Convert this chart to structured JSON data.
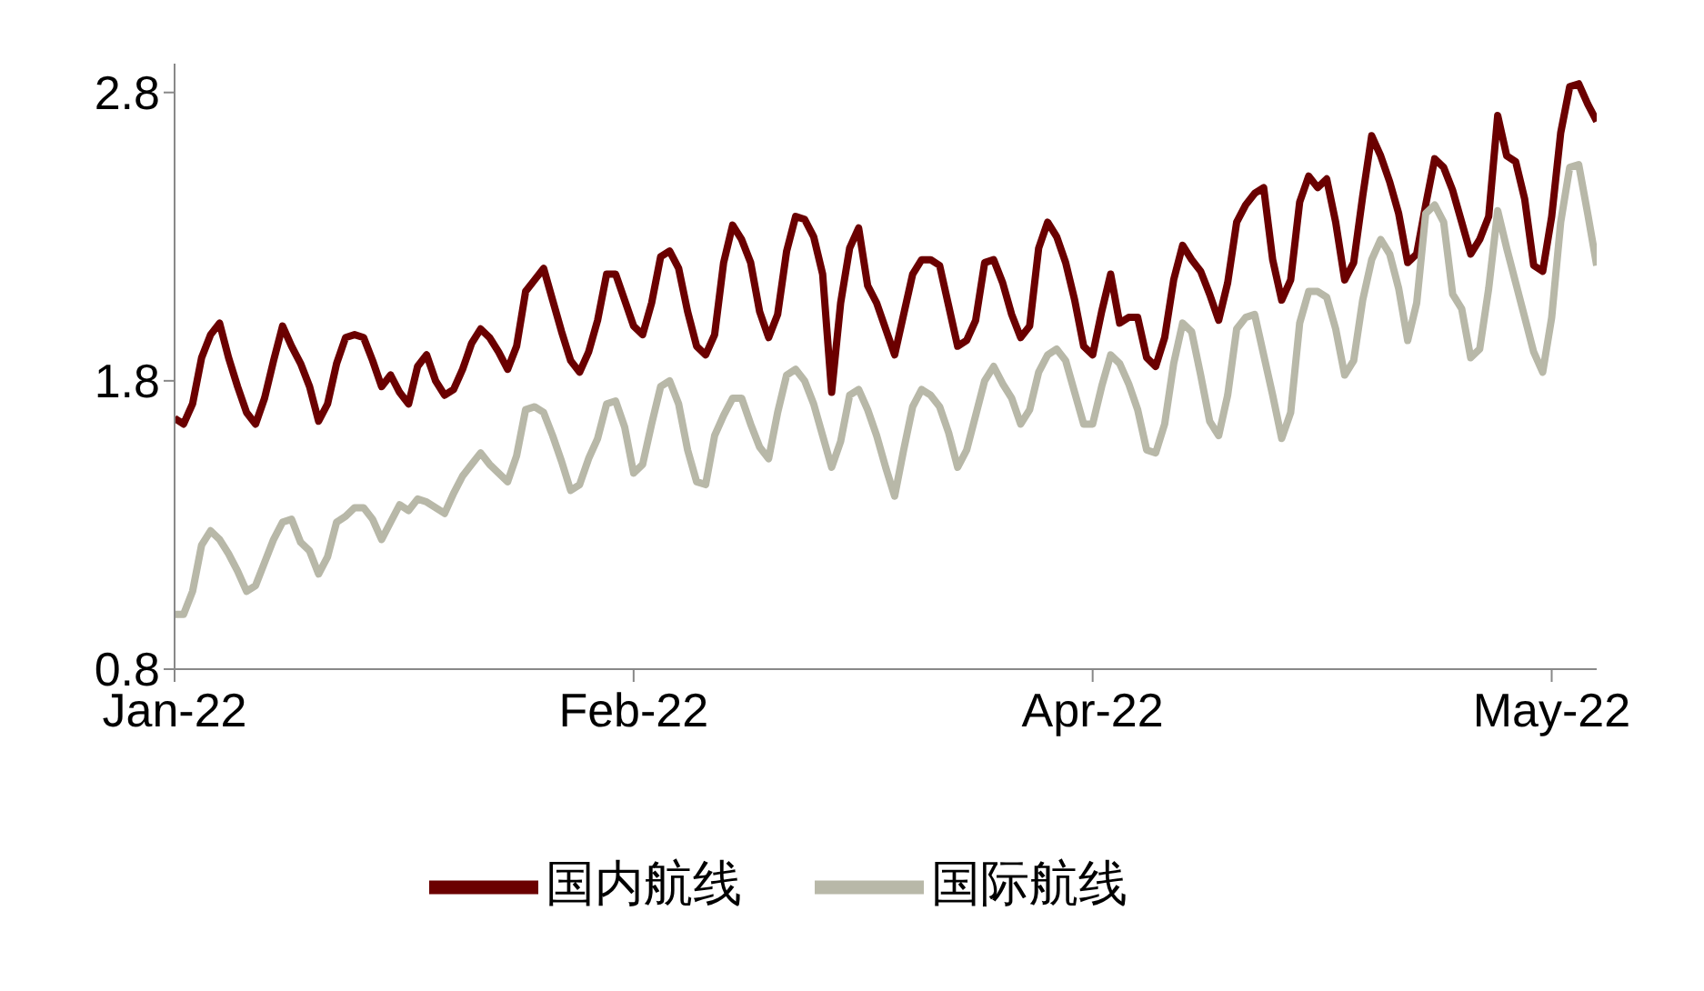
{
  "chart_data": {
    "type": "line",
    "categories": [
      "Jan-22",
      null,
      null,
      null,
      null,
      null,
      null,
      null,
      null,
      null,
      null,
      null,
      null,
      null,
      null,
      null,
      null,
      null,
      null,
      null,
      null,
      null,
      null,
      null,
      null,
      null,
      null,
      null,
      null,
      null,
      null,
      null,
      null,
      null,
      null,
      null,
      null,
      null,
      null,
      null,
      null,
      null,
      null,
      null,
      null,
      null,
      null,
      null,
      null,
      null,
      null,
      "Feb-22",
      null,
      null,
      null,
      null,
      null,
      null,
      null,
      null,
      null,
      null,
      null,
      null,
      null,
      null,
      null,
      null,
      null,
      null,
      null,
      null,
      null,
      null,
      null,
      null,
      null,
      null,
      null,
      null,
      null,
      null,
      null,
      null,
      null,
      null,
      null,
      null,
      null,
      null,
      null,
      null,
      null,
      null,
      null,
      null,
      null,
      null,
      null,
      null,
      null,
      null,
      "Apr-22",
      null,
      null,
      null,
      null,
      null,
      null,
      null,
      null,
      null,
      null,
      null,
      null,
      null,
      null,
      null,
      null,
      null,
      null,
      null,
      null,
      null,
      null,
      null,
      null,
      null,
      null,
      null,
      null,
      null,
      null,
      null,
      null,
      null,
      null,
      null,
      null,
      null,
      null,
      null,
      null,
      null,
      null,
      null,
      null,
      null,
      null,
      null,
      null,
      null,
      null,
      "May-22",
      null,
      null,
      null,
      null,
      null
    ],
    "ylim": [
      0.8,
      2.9
    ],
    "yticks": [
      0.8,
      1.8,
      2.8
    ],
    "grid": false,
    "legend": "bottom",
    "marker": "none",
    "line_style": "solid",
    "series": [
      {
        "name": "国内航线",
        "color": "#6b0000",
        "values": [
          1.67,
          1.65,
          1.72,
          1.88,
          1.96,
          2.0,
          1.88,
          1.78,
          1.69,
          1.65,
          1.74,
          1.87,
          1.99,
          1.92,
          1.86,
          1.78,
          1.66,
          1.72,
          1.86,
          1.95,
          1.96,
          1.95,
          1.87,
          1.78,
          1.82,
          1.76,
          1.72,
          1.85,
          1.89,
          1.8,
          1.75,
          1.77,
          1.84,
          1.93,
          1.98,
          1.95,
          1.9,
          1.84,
          1.92,
          2.11,
          2.15,
          2.19,
          2.08,
          1.97,
          1.87,
          1.83,
          1.9,
          2.01,
          2.17,
          2.17,
          2.08,
          1.99,
          1.96,
          2.07,
          2.23,
          2.25,
          2.19,
          2.04,
          1.92,
          1.89,
          1.96,
          2.21,
          2.34,
          2.29,
          2.21,
          2.04,
          1.95,
          2.03,
          2.25,
          2.37,
          2.36,
          2.3,
          2.17,
          1.76,
          2.07,
          2.26,
          2.33,
          2.13,
          2.07,
          1.98,
          1.89,
          2.03,
          2.17,
          2.22,
          2.22,
          2.2,
          2.06,
          1.92,
          1.94,
          2.01,
          2.21,
          2.22,
          2.14,
          2.03,
          1.95,
          1.99,
          2.26,
          2.35,
          2.3,
          2.21,
          2.08,
          1.92,
          1.89,
          2.04,
          2.17,
          2.0,
          2.02,
          2.02,
          1.88,
          1.85,
          1.95,
          2.15,
          2.27,
          2.22,
          2.18,
          2.1,
          2.01,
          2.14,
          2.35,
          2.41,
          2.45,
          2.47,
          2.22,
          2.08,
          2.15,
          2.42,
          2.51,
          2.47,
          2.5,
          2.35,
          2.15,
          2.21,
          2.44,
          2.65,
          2.58,
          2.49,
          2.38,
          2.21,
          2.24,
          2.41,
          2.57,
          2.54,
          2.46,
          2.35,
          2.24,
          2.29,
          2.37,
          2.72,
          2.58,
          2.56,
          2.43,
          2.2,
          2.18,
          2.37,
          2.66,
          2.82,
          2.83,
          2.76,
          2.7
        ]
      },
      {
        "name": "国际航线",
        "color": "#b8b8a8",
        "values": [
          0.99,
          0.99,
          1.07,
          1.23,
          1.28,
          1.25,
          1.2,
          1.14,
          1.07,
          1.09,
          1.17,
          1.25,
          1.31,
          1.32,
          1.24,
          1.21,
          1.13,
          1.19,
          1.31,
          1.33,
          1.36,
          1.36,
          1.32,
          1.25,
          1.31,
          1.37,
          1.35,
          1.39,
          1.38,
          1.36,
          1.34,
          1.41,
          1.47,
          1.51,
          1.55,
          1.51,
          1.48,
          1.45,
          1.54,
          1.7,
          1.71,
          1.69,
          1.61,
          1.52,
          1.42,
          1.44,
          1.53,
          1.6,
          1.72,
          1.73,
          1.64,
          1.48,
          1.51,
          1.65,
          1.78,
          1.8,
          1.72,
          1.56,
          1.45,
          1.44,
          1.61,
          1.68,
          1.74,
          1.74,
          1.65,
          1.57,
          1.53,
          1.69,
          1.82,
          1.84,
          1.8,
          1.72,
          1.61,
          1.5,
          1.59,
          1.75,
          1.77,
          1.7,
          1.61,
          1.5,
          1.4,
          1.56,
          1.71,
          1.77,
          1.75,
          1.71,
          1.62,
          1.5,
          1.56,
          1.68,
          1.8,
          1.85,
          1.79,
          1.74,
          1.65,
          1.7,
          1.83,
          1.89,
          1.91,
          1.87,
          1.76,
          1.65,
          1.65,
          1.78,
          1.89,
          1.86,
          1.79,
          1.7,
          1.56,
          1.55,
          1.65,
          1.86,
          2.0,
          1.97,
          1.82,
          1.66,
          1.61,
          1.75,
          1.98,
          2.02,
          2.03,
          1.89,
          1.75,
          1.6,
          1.69,
          2.0,
          2.11,
          2.11,
          2.09,
          1.98,
          1.82,
          1.87,
          2.08,
          2.22,
          2.29,
          2.24,
          2.12,
          1.94,
          2.07,
          2.38,
          2.41,
          2.35,
          2.1,
          2.05,
          1.88,
          1.91,
          2.12,
          2.39,
          2.26,
          2.14,
          2.02,
          1.9,
          1.83,
          2.02,
          2.35,
          2.54,
          2.55,
          2.38,
          2.2
        ]
      }
    ]
  }
}
